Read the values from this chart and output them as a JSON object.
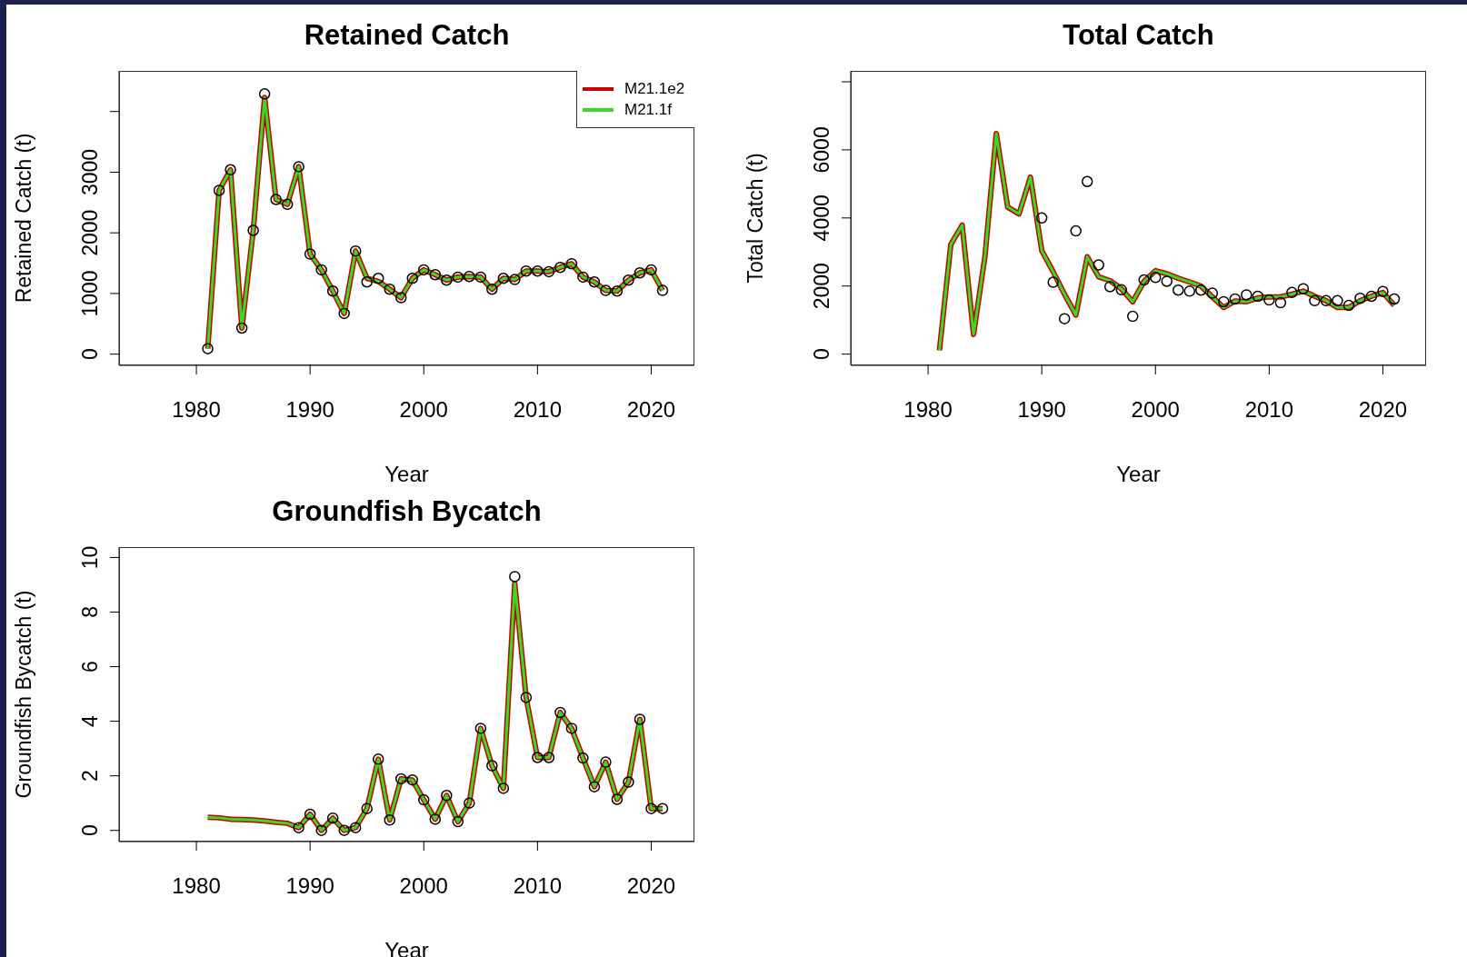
{
  "chart_data": [
    {
      "type": "line",
      "title": "Retained Catch",
      "xlabel": "Year",
      "ylabel": "Retained Catch (t)",
      "x": [
        1981,
        1982,
        1983,
        1984,
        1985,
        1986,
        1987,
        1988,
        1989,
        1990,
        1991,
        1992,
        1993,
        1994,
        1995,
        1996,
        1997,
        1998,
        1999,
        2000,
        2001,
        2002,
        2003,
        2004,
        2005,
        2006,
        2007,
        2008,
        2009,
        2010,
        2011,
        2012,
        2013,
        2014,
        2015,
        2016,
        2017,
        2018,
        2019,
        2020,
        2021
      ],
      "xlim": [
        1973.2,
        2023.8
      ],
      "xticks": [
        1980,
        1990,
        2000,
        2010,
        2020
      ],
      "ylim": [
        -185,
        4670
      ],
      "yticks": [
        0,
        1000,
        2000,
        3000,
        {
          "value": 4000,
          "label": null
        }
      ],
      "grid": false,
      "legend": "top right",
      "series": [
        {
          "type": "scatter",
          "marker": "circle",
          "color": "#000000",
          "values": [
            90,
            2700,
            3040,
            430,
            2040,
            4290,
            2550,
            2470,
            3090,
            1650,
            1390,
            1040,
            670,
            1700,
            1190,
            1250,
            1070,
            930,
            1250,
            1390,
            1310,
            1220,
            1270,
            1280,
            1270,
            1070,
            1250,
            1230,
            1370,
            1370,
            1360,
            1430,
            1490,
            1270,
            1190,
            1050,
            1040,
            1220,
            1340,
            1390,
            1050
          ]
        },
        {
          "type": "line",
          "name": "M21.1e2",
          "color": "#cc0000",
          "values": [
            90,
            2700,
            3040,
            430,
            2040,
            4230,
            2550,
            2470,
            3090,
            1650,
            1390,
            1040,
            670,
            1700,
            1250,
            1200,
            1070,
            930,
            1250,
            1390,
            1310,
            1220,
            1270,
            1280,
            1270,
            1070,
            1250,
            1230,
            1370,
            1370,
            1360,
            1430,
            1490,
            1270,
            1190,
            1050,
            1040,
            1220,
            1340,
            1390,
            1050
          ]
        },
        {
          "type": "line",
          "name": "M21.1f",
          "color": "#33dd22",
          "values": [
            90,
            2700,
            3040,
            430,
            2040,
            4230,
            2550,
            2470,
            3090,
            1650,
            1390,
            1040,
            670,
            1700,
            1250,
            1200,
            1070,
            930,
            1250,
            1390,
            1310,
            1220,
            1270,
            1280,
            1270,
            1070,
            1250,
            1230,
            1370,
            1370,
            1360,
            1430,
            1490,
            1270,
            1190,
            1050,
            1040,
            1220,
            1340,
            1390,
            1050
          ]
        }
      ]
    },
    {
      "type": "line",
      "title": "Total Catch",
      "xlabel": "Year",
      "ylabel": "Total Catch (t)",
      "x": [
        1981,
        1982,
        1983,
        1984,
        1985,
        1986,
        1987,
        1988,
        1989,
        1990,
        1991,
        1992,
        1993,
        1994,
        1995,
        1996,
        1997,
        1998,
        1999,
        2000,
        2001,
        2002,
        2003,
        2004,
        2005,
        2006,
        2007,
        2008,
        2009,
        2010,
        2011,
        2012,
        2013,
        2014,
        2015,
        2016,
        2017,
        2018,
        2019,
        2020,
        2021
      ],
      "xlim": [
        1973.2,
        2023.8
      ],
      "xticks": [
        1980,
        1990,
        2000,
        2010,
        2020
      ],
      "ylim": [
        -330,
        8320
      ],
      "yticks": [
        0,
        2000,
        4000,
        6000,
        {
          "value": 8000,
          "label": null
        }
      ],
      "grid": false,
      "series": [
        {
          "type": "scatter",
          "marker": "circle",
          "color": "#000000",
          "values": [
            null,
            null,
            null,
            null,
            null,
            null,
            null,
            null,
            null,
            4000,
            2110,
            1040,
            3620,
            5070,
            2620,
            1980,
            1890,
            1110,
            2180,
            2250,
            2140,
            1880,
            1850,
            1880,
            1790,
            1540,
            1620,
            1740,
            1700,
            1590,
            1510,
            1810,
            1920,
            1570,
            1570,
            1570,
            1430,
            1640,
            1700,
            1840,
            1620
          ]
        },
        {
          "type": "line",
          "color": "#cc0000",
          "values": [
            110,
            3220,
            3790,
            580,
            2860,
            6480,
            4320,
            4120,
            5200,
            3040,
            2420,
            1760,
            1150,
            2860,
            2270,
            2160,
            1920,
            1540,
            2140,
            2450,
            2360,
            2230,
            2120,
            2000,
            1680,
            1370,
            1560,
            1540,
            1650,
            1680,
            1680,
            1760,
            1850,
            1700,
            1570,
            1370,
            1370,
            1570,
            1700,
            1810,
            1430
          ]
        },
        {
          "type": "line",
          "color": "#33dd22",
          "values": [
            110,
            3220,
            3790,
            580,
            2860,
            6480,
            4320,
            4120,
            5200,
            3040,
            2420,
            1760,
            1150,
            2860,
            2270,
            2160,
            1920,
            1540,
            2140,
            2450,
            2360,
            2230,
            2120,
            2000,
            1680,
            1370,
            1560,
            1540,
            1650,
            1680,
            1680,
            1760,
            1850,
            1700,
            1570,
            1370,
            1370,
            1570,
            1700,
            1810,
            1430
          ]
        }
      ]
    },
    {
      "type": "line",
      "title": "Groundfish Bycatch",
      "xlabel": "Year",
      "ylabel": "Groundfish Bycatch (t)",
      "x": [
        1981,
        1982,
        1983,
        1984,
        1985,
        1986,
        1987,
        1988,
        1989,
        1990,
        1991,
        1992,
        1993,
        1994,
        1995,
        1996,
        1997,
        1998,
        1999,
        2000,
        2001,
        2002,
        2003,
        2004,
        2005,
        2006,
        2007,
        2008,
        2009,
        2010,
        2011,
        2012,
        2013,
        2014,
        2015,
        2016,
        2017,
        2018,
        2019,
        2020,
        2021
      ],
      "xlim": [
        1973.2,
        2023.8
      ],
      "xticks": [
        1980,
        1990,
        2000,
        2010,
        2020
      ],
      "ylim": [
        -0.41,
        10.38
      ],
      "yticks": [
        0,
        2,
        4,
        6,
        8,
        10
      ],
      "grid": false,
      "series": [
        {
          "type": "scatter",
          "marker": "circle",
          "color": "#000000",
          "values": [
            null,
            null,
            null,
            null,
            null,
            null,
            null,
            null,
            0.1,
            0.59,
            0.0,
            0.45,
            0.0,
            0.1,
            0.8,
            2.61,
            0.38,
            1.89,
            1.85,
            1.12,
            0.41,
            1.28,
            0.32,
            1.0,
            3.74,
            2.37,
            1.54,
            9.3,
            4.87,
            2.67,
            2.67,
            4.32,
            3.74,
            2.65,
            1.6,
            2.5,
            1.14,
            1.77,
            4.07,
            0.8,
            0.8
          ]
        },
        {
          "type": "line",
          "color": "#cc0000",
          "values": [
            0.48,
            0.46,
            0.41,
            0.4,
            0.38,
            0.35,
            0.3,
            0.26,
            0.1,
            0.59,
            0.0,
            0.45,
            0.0,
            0.1,
            0.8,
            2.61,
            0.38,
            1.89,
            1.85,
            1.12,
            0.41,
            1.28,
            0.32,
            1.0,
            3.74,
            2.37,
            1.54,
            9.05,
            4.87,
            2.67,
            2.67,
            4.32,
            3.74,
            2.65,
            1.6,
            2.5,
            1.14,
            1.77,
            4.07,
            0.8,
            0.8
          ]
        },
        {
          "type": "line",
          "color": "#33dd22",
          "values": [
            0.48,
            0.46,
            0.41,
            0.4,
            0.38,
            0.35,
            0.3,
            0.26,
            0.1,
            0.59,
            0.0,
            0.45,
            0.0,
            0.1,
            0.8,
            2.61,
            0.38,
            1.89,
            1.85,
            1.12,
            0.41,
            1.28,
            0.32,
            1.0,
            3.74,
            2.37,
            1.54,
            9.05,
            4.87,
            2.67,
            2.67,
            4.32,
            3.74,
            2.65,
            1.6,
            2.5,
            1.14,
            1.77,
            4.07,
            0.8,
            0.8
          ]
        }
      ]
    }
  ]
}
